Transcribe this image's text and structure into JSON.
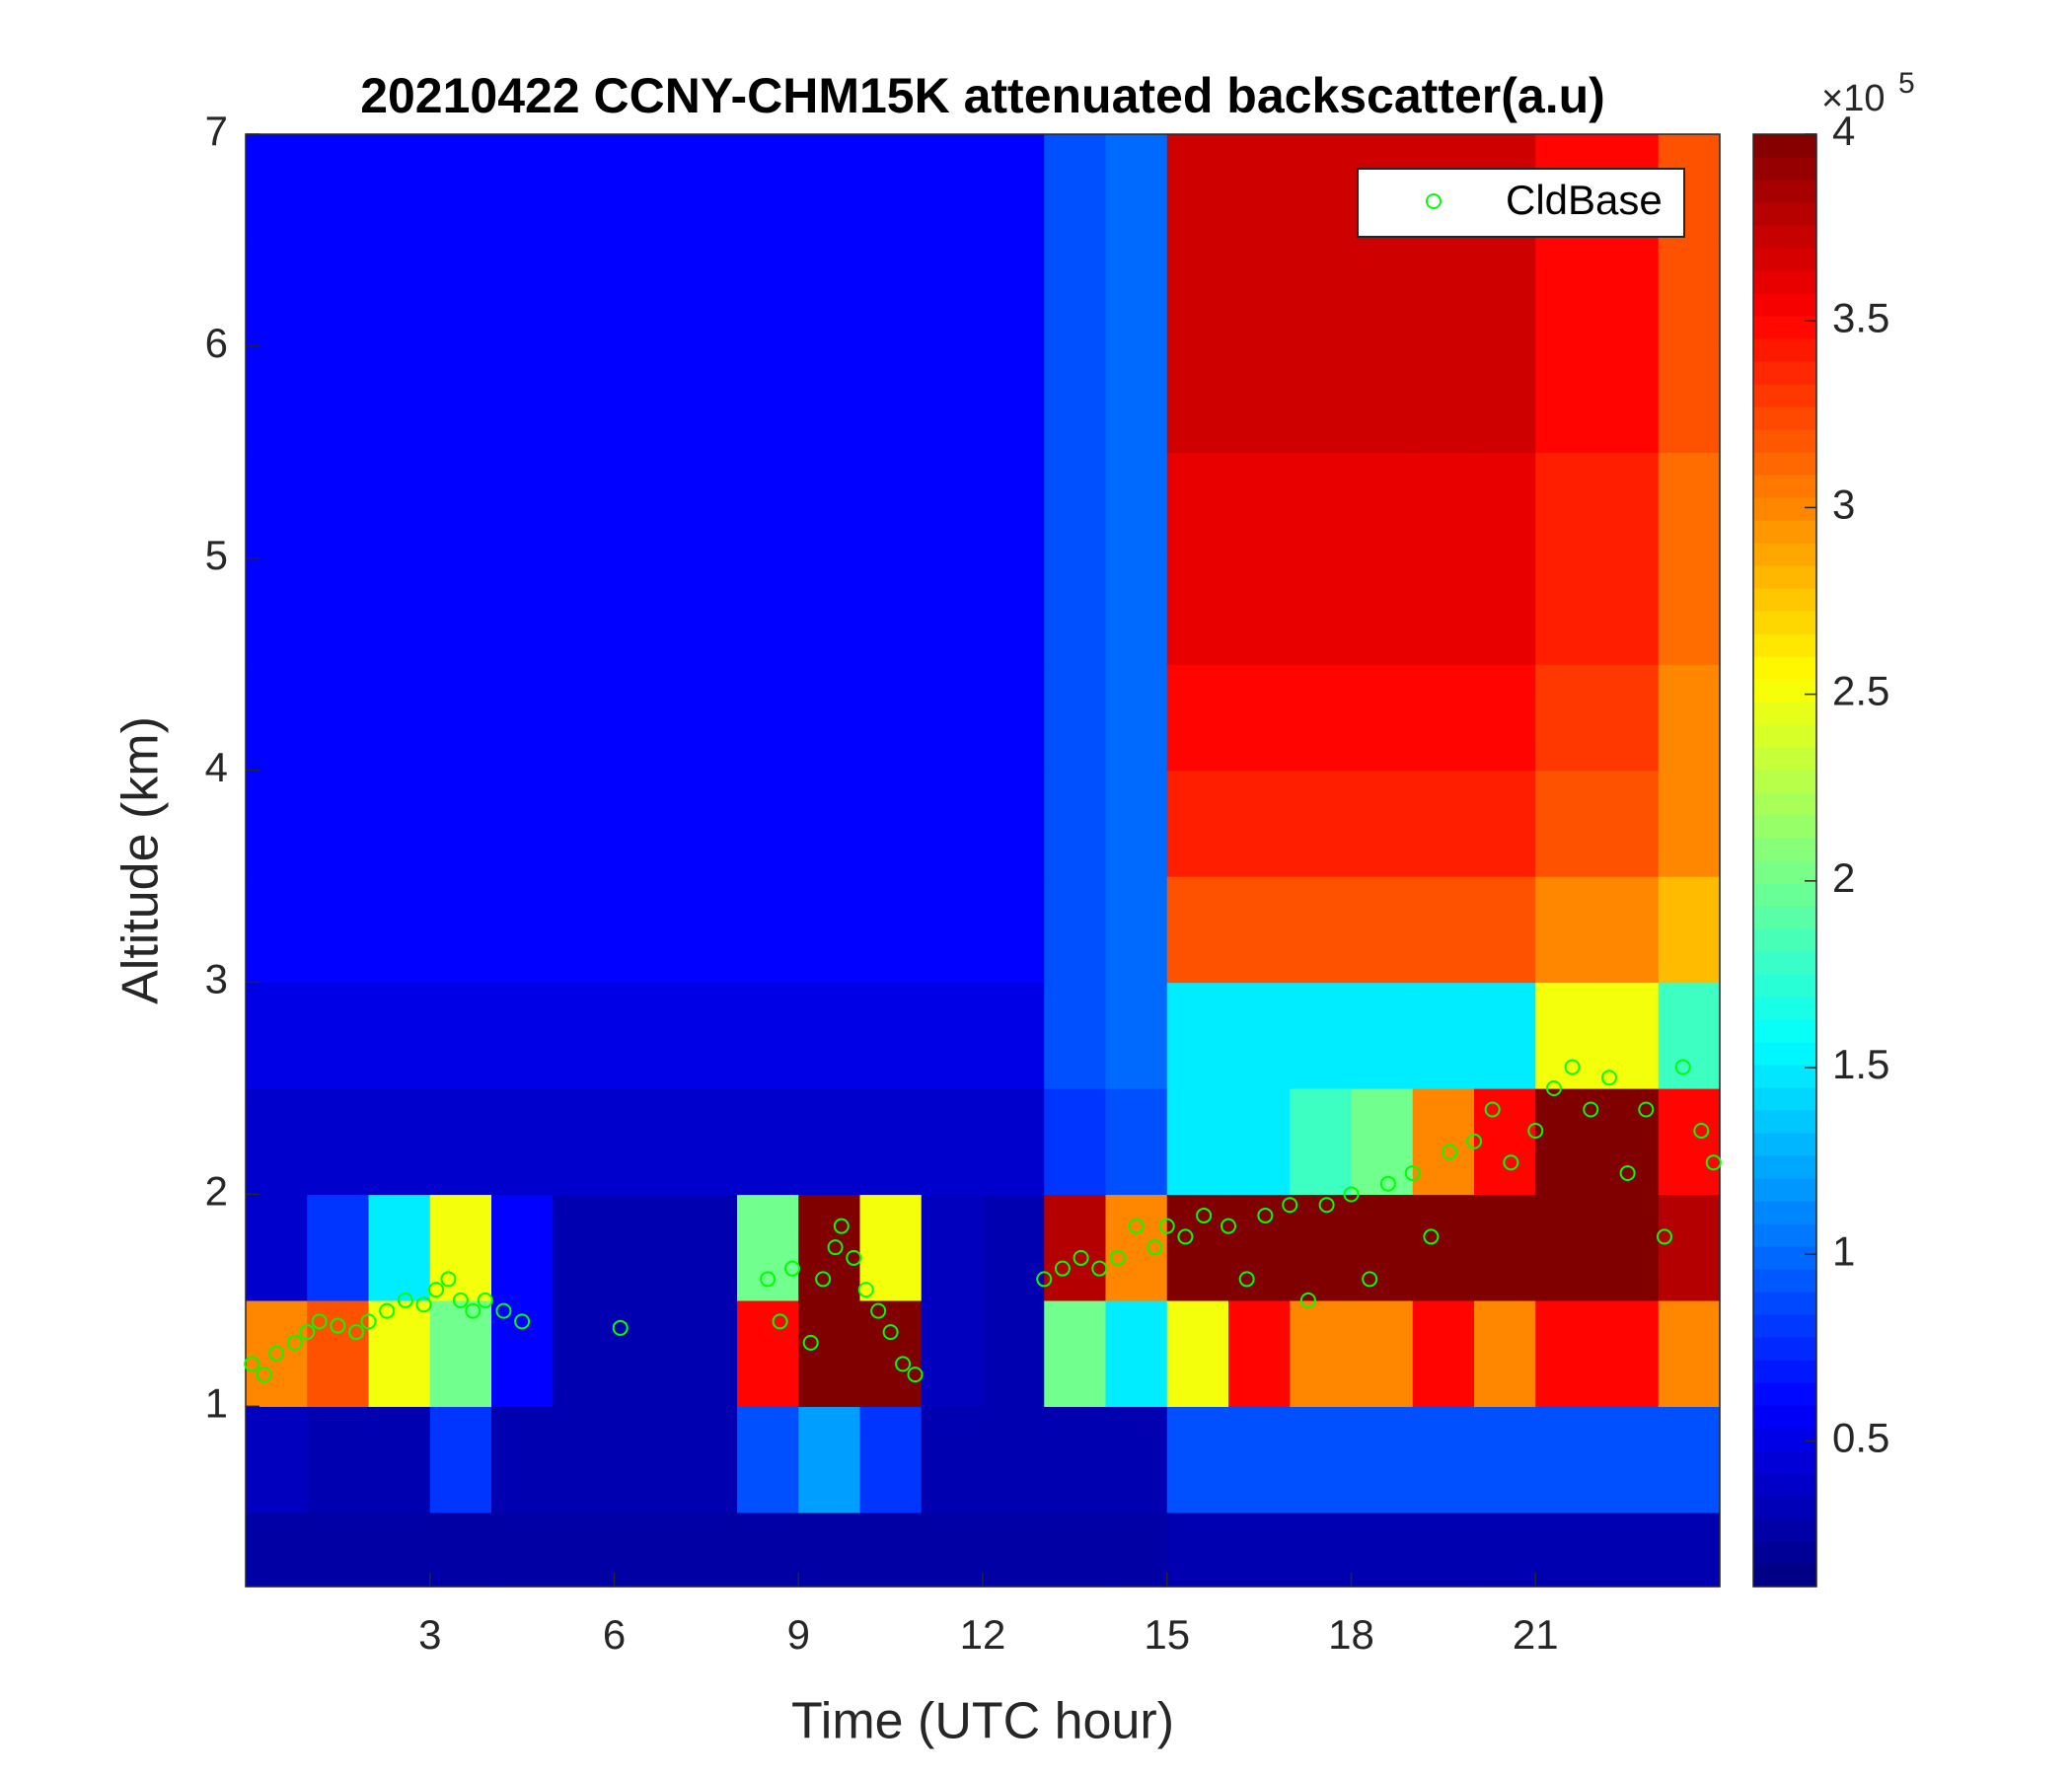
{
  "chart_data": {
    "type": "heatmap",
    "title": "20210422 CCNY-CHM15K attenuated backscatter(a.u)",
    "x_label": "Time (UTC hour)",
    "y_label": "Altitude (km)",
    "xlim": [
      0,
      24
    ],
    "ylim": [
      0.15,
      7
    ],
    "xticks": [
      3,
      6,
      9,
      12,
      15,
      18,
      21
    ],
    "yticks": [
      1,
      2,
      3,
      4,
      5,
      6,
      7
    ],
    "x_edges": [
      0,
      1,
      2,
      3,
      4,
      5,
      6,
      7,
      8,
      9,
      10,
      11,
      12,
      13,
      14,
      15,
      16,
      17,
      18,
      19,
      20,
      21,
      22,
      23,
      24
    ],
    "y_edges": [
      0.15,
      0.5,
      1,
      1.5,
      2,
      2.5,
      3,
      3.5,
      4,
      4.5,
      5,
      5.5,
      6,
      6.5,
      7
    ],
    "z": [
      [
        0.25,
        0.25,
        0.25,
        0.25,
        0.25,
        0.25,
        0.25,
        0.25,
        0.25,
        0.25,
        0.25,
        0.25,
        0.25,
        0.25,
        0.25,
        0.3,
        0.3,
        0.3,
        0.3,
        0.3,
        0.3,
        0.3,
        0.3,
        0.3
      ],
      [
        0.35,
        0.3,
        0.3,
        0.8,
        0.3,
        0.3,
        0.3,
        0.3,
        0.9,
        1.2,
        0.8,
        0.3,
        0.3,
        0.3,
        0.3,
        0.9,
        0.9,
        0.9,
        0.9,
        0.9,
        0.9,
        0.9,
        0.9,
        0.9
      ],
      [
        3.0,
        3.2,
        2.5,
        2.0,
        0.6,
        0.3,
        0.3,
        0.3,
        3.5,
        4,
        4,
        0.35,
        0.3,
        2.0,
        1.5,
        2.5,
        3.5,
        3.0,
        3.0,
        3.5,
        3.0,
        3.5,
        3.5,
        3.0
      ],
      [
        0.4,
        0.8,
        1.5,
        2.5,
        0.6,
        0.3,
        0.3,
        0.3,
        2,
        4,
        2.5,
        0.35,
        0.3,
        3.8,
        3.0,
        4,
        4,
        4,
        4,
        4,
        4,
        4,
        4,
        3.8
      ],
      [
        0.4,
        0.4,
        0.4,
        0.4,
        0.4,
        0.4,
        0.4,
        0.4,
        0.4,
        0.4,
        0.4,
        0.4,
        0.4,
        0.8,
        0.9,
        1.5,
        1.5,
        1.8,
        2.0,
        3.0,
        3.5,
        4,
        4,
        3.5
      ],
      [
        0.5,
        0.5,
        0.5,
        0.5,
        0.5,
        0.5,
        0.5,
        0.5,
        0.5,
        0.5,
        0.5,
        0.5,
        0.5,
        0.9,
        1.0,
        1.5,
        1.5,
        1.5,
        1.5,
        1.5,
        1.5,
        2.5,
        2.5,
        1.8
      ],
      [
        0.6,
        0.6,
        0.6,
        0.6,
        0.6,
        0.6,
        0.6,
        0.6,
        0.6,
        0.6,
        0.6,
        0.6,
        0.6,
        0.9,
        1.0,
        3.2,
        3.2,
        3.2,
        3.2,
        3.2,
        3.2,
        3.0,
        3.0,
        2.8
      ],
      [
        0.6,
        0.6,
        0.6,
        0.6,
        0.6,
        0.6,
        0.6,
        0.6,
        0.6,
        0.6,
        0.6,
        0.6,
        0.6,
        0.9,
        1.0,
        3.4,
        3.4,
        3.4,
        3.4,
        3.4,
        3.4,
        3.2,
        3.2,
        3.0
      ],
      [
        0.6,
        0.6,
        0.6,
        0.6,
        0.6,
        0.6,
        0.6,
        0.6,
        0.6,
        0.6,
        0.6,
        0.6,
        0.6,
        0.9,
        1.0,
        3.5,
        3.5,
        3.5,
        3.5,
        3.5,
        3.5,
        3.3,
        3.3,
        3.0
      ],
      [
        0.6,
        0.6,
        0.6,
        0.6,
        0.6,
        0.6,
        0.6,
        0.6,
        0.6,
        0.6,
        0.6,
        0.6,
        0.6,
        0.9,
        1.0,
        3.6,
        3.6,
        3.6,
        3.6,
        3.6,
        3.6,
        3.4,
        3.4,
        3.1
      ],
      [
        0.6,
        0.6,
        0.6,
        0.6,
        0.6,
        0.6,
        0.6,
        0.6,
        0.6,
        0.6,
        0.6,
        0.6,
        0.6,
        0.9,
        1.0,
        3.6,
        3.6,
        3.6,
        3.6,
        3.6,
        3.6,
        3.4,
        3.4,
        3.1
      ],
      [
        0.6,
        0.6,
        0.6,
        0.6,
        0.6,
        0.6,
        0.6,
        0.6,
        0.6,
        0.6,
        0.6,
        0.6,
        0.6,
        0.9,
        1.0,
        3.7,
        3.7,
        3.7,
        3.7,
        3.7,
        3.7,
        3.5,
        3.5,
        3.2
      ],
      [
        0.6,
        0.6,
        0.6,
        0.6,
        0.6,
        0.6,
        0.6,
        0.6,
        0.6,
        0.6,
        0.6,
        0.6,
        0.6,
        0.9,
        1.0,
        3.7,
        3.7,
        3.7,
        3.7,
        3.7,
        3.7,
        3.5,
        3.5,
        3.2
      ],
      [
        0.6,
        0.6,
        0.6,
        0.6,
        0.6,
        0.6,
        0.6,
        0.6,
        0.6,
        0.6,
        0.6,
        0.6,
        0.6,
        0.9,
        1.0,
        3.7,
        3.7,
        3.7,
        3.7,
        3.7,
        3.7,
        3.5,
        3.5,
        3.2
      ]
    ],
    "clim": [
      0.11,
      4
    ],
    "colorbar_ticks": [
      0.5,
      1,
      1.5,
      2,
      2.5,
      3,
      3.5,
      4
    ],
    "colorbar_multiplier": {
      "base": "×10",
      "exponent": "5"
    },
    "colormap": "jet",
    "legend_position": "upper right",
    "series": [
      {
        "name": "CldBase",
        "type": "scatter",
        "color": "#00ff00",
        "x": [
          0.1,
          0.3,
          0.5,
          0.8,
          1.0,
          1.2,
          1.5,
          1.8,
          2.0,
          2.3,
          2.6,
          2.9,
          3.1,
          3.3,
          3.5,
          3.7,
          3.9,
          4.2,
          4.5,
          6.1,
          8.5,
          8.7,
          8.9,
          9.2,
          9.4,
          9.6,
          9.7,
          9.9,
          10.1,
          10.3,
          10.5,
          10.7,
          10.9,
          13.0,
          13.3,
          13.6,
          13.9,
          14.2,
          14.5,
          14.8,
          15.0,
          15.3,
          15.6,
          16.0,
          16.3,
          16.6,
          17.0,
          17.3,
          17.6,
          18.0,
          18.3,
          18.6,
          19.0,
          19.3,
          19.6,
          20.0,
          20.3,
          20.6,
          21.0,
          21.3,
          21.6,
          21.9,
          22.2,
          22.5,
          22.8,
          23.1,
          23.4,
          23.7,
          23.9
        ],
        "values": [
          1.2,
          1.15,
          1.25,
          1.3,
          1.35,
          1.4,
          1.38,
          1.35,
          1.4,
          1.45,
          1.5,
          1.48,
          1.55,
          1.6,
          1.5,
          1.45,
          1.5,
          1.45,
          1.4,
          1.37,
          1.6,
          1.4,
          1.65,
          1.3,
          1.6,
          1.75,
          1.85,
          1.7,
          1.55,
          1.45,
          1.35,
          1.2,
          1.15,
          1.6,
          1.65,
          1.7,
          1.65,
          1.7,
          1.85,
          1.75,
          1.85,
          1.8,
          1.9,
          1.85,
          1.6,
          1.9,
          1.95,
          1.5,
          1.95,
          2.0,
          1.6,
          2.05,
          2.1,
          1.8,
          2.2,
          2.25,
          2.4,
          2.15,
          2.3,
          2.5,
          2.6,
          2.4,
          2.55,
          2.1,
          2.4,
          1.8,
          2.6,
          2.3,
          2.15
        ]
      }
    ]
  }
}
